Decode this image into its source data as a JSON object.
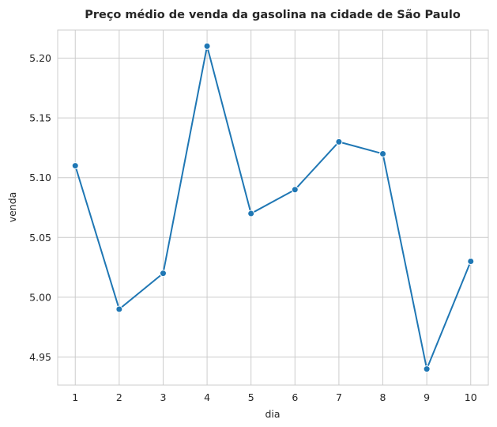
{
  "chart_data": {
    "type": "line",
    "title": "Preço médio de venda da gasolina na cidade de São Paulo",
    "xlabel": "dia",
    "ylabel": "venda",
    "x": [
      1,
      2,
      3,
      4,
      5,
      6,
      7,
      8,
      9,
      10
    ],
    "series": [
      {
        "values": [
          5.11,
          4.99,
          5.02,
          5.21,
          5.07,
          5.09,
          5.13,
          5.12,
          4.94,
          5.03
        ],
        "color": "#1f77b4"
      }
    ],
    "xticks": [
      "1",
      "2",
      "3",
      "4",
      "5",
      "6",
      "7",
      "8",
      "9",
      "10"
    ],
    "yticks": [
      "4.95",
      "5.00",
      "5.05",
      "5.10",
      "5.15",
      "5.20"
    ],
    "xlim": [
      0.6,
      10.4
    ],
    "ylim": [
      4.9265,
      5.2235
    ],
    "grid": true,
    "marker": "circle"
  }
}
